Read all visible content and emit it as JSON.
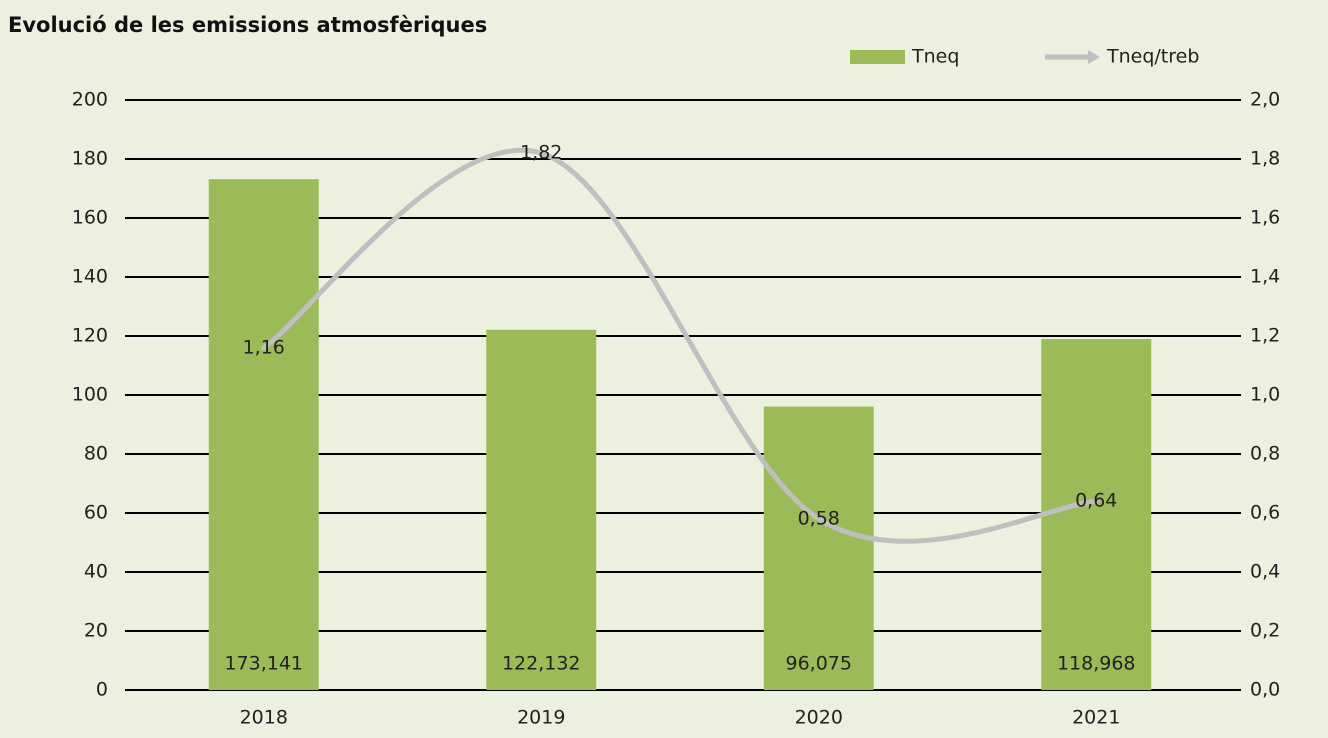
{
  "chart_data": {
    "type": "bar",
    "title": "Evolució de les emissions atmosfèriques",
    "categories": [
      "2018",
      "2019",
      "2020",
      "2021"
    ],
    "series": [
      {
        "name": "Tneq",
        "type": "bar",
        "color": "#9bbb59",
        "values": [
          173.141,
          122.132,
          96.075,
          118.968
        ],
        "value_labels": [
          "173,141",
          "122,132",
          "96,075",
          "118,968"
        ]
      },
      {
        "name": "Tneq/treb",
        "type": "line",
        "axis": "y2",
        "color": "#bfbfbf",
        "values": [
          1.16,
          1.82,
          0.58,
          0.64
        ],
        "value_labels": [
          "1,16",
          "1,82",
          "0,58",
          "0,64"
        ]
      }
    ],
    "ylim": [
      0,
      200
    ],
    "yticks": [
      0,
      20,
      40,
      60,
      80,
      100,
      120,
      140,
      160,
      180,
      200
    ],
    "y2lim": [
      0,
      2
    ],
    "y2ticks": [
      {
        "value": 0,
        "label": "0,0"
      },
      {
        "value": 0.2,
        "label": "0,2"
      },
      {
        "value": 0.4,
        "label": "0,4"
      },
      {
        "value": 0.6,
        "label": "0,6"
      },
      {
        "value": 0.8,
        "label": "0,8"
      },
      {
        "value": 1,
        "label": "1,0"
      },
      {
        "value": 1.2,
        "label": "1,2"
      },
      {
        "value": 1.4,
        "label": "1,4"
      },
      {
        "value": 1.6,
        "label": "1,6"
      },
      {
        "value": 1.8,
        "label": "1,8"
      },
      {
        "value": 2,
        "label": "2,0"
      }
    ],
    "grid": true,
    "legend": "top-right"
  }
}
